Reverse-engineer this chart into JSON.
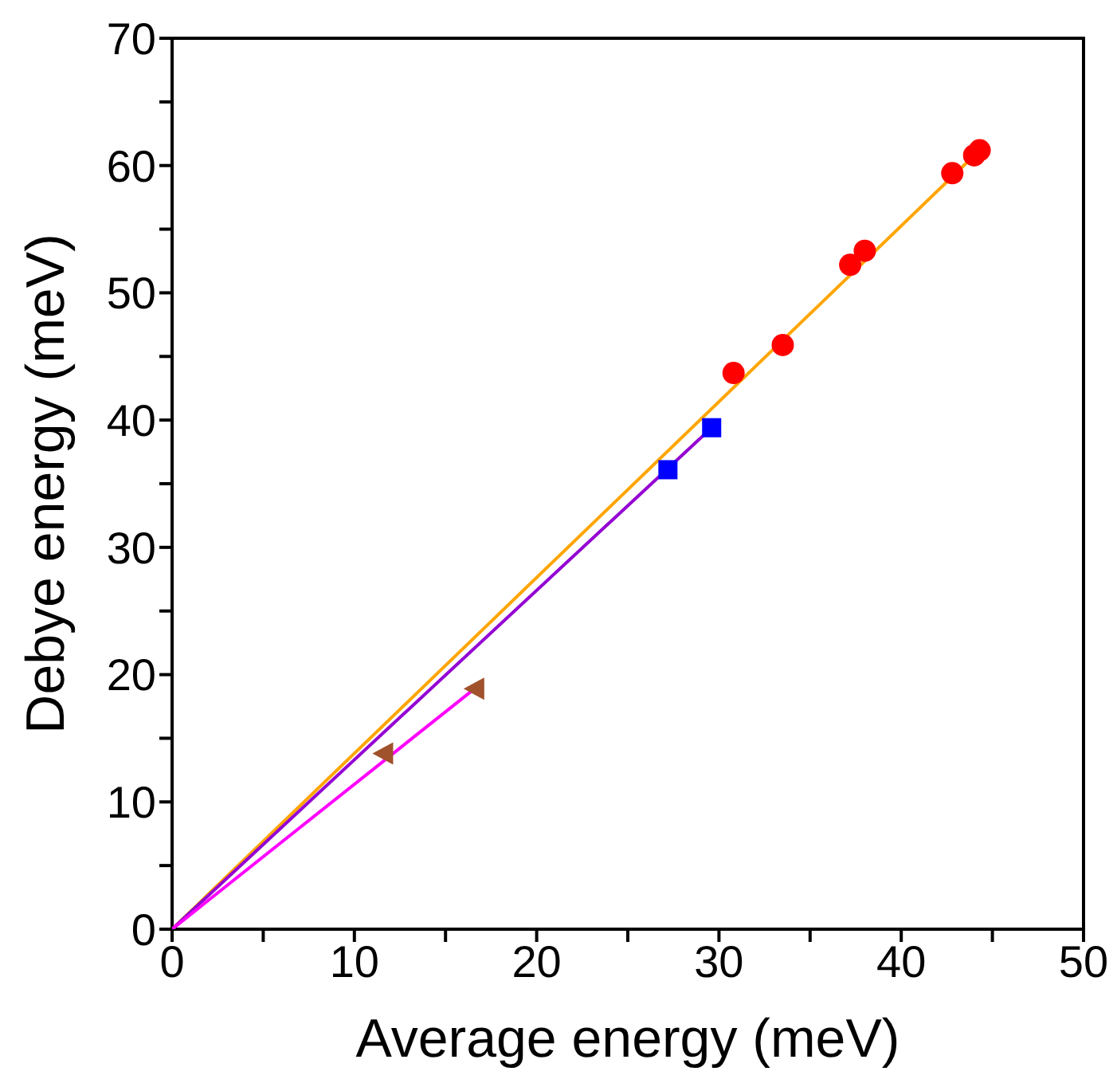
{
  "chart_data": {
    "type": "scatter",
    "xlabel": "Average energy (meV)",
    "ylabel": "Debye energy (meV)",
    "xlim": [
      0,
      50
    ],
    "xticks": [
      0,
      {
        "value": 5,
        "label": null
      },
      10,
      {
        "value": 15,
        "label": null
      },
      20,
      {
        "value": 25,
        "label": null
      },
      30,
      {
        "value": 35,
        "label": null
      },
      40,
      {
        "value": 45,
        "label": null
      },
      50
    ],
    "ylim": [
      0,
      70
    ],
    "yticks": [
      0,
      {
        "value": 5,
        "label": null
      },
      10,
      {
        "value": 15,
        "label": null
      },
      20,
      {
        "value": 25,
        "label": null
      },
      30,
      {
        "value": 35,
        "label": null
      },
      40,
      {
        "value": 45,
        "label": null
      },
      50,
      {
        "value": 55,
        "label": null
      },
      60,
      {
        "value": 65,
        "label": null
      },
      70
    ],
    "series": [
      {
        "type": "line",
        "color": "#ffa500",
        "x": [
          0,
          44.3
        ],
        "values": [
          0,
          61.2
        ],
        "marker": "none"
      },
      {
        "type": "line",
        "color": "#9400d3",
        "x": [
          0,
          29.6
        ],
        "values": [
          0,
          39.4
        ],
        "marker": "none"
      },
      {
        "type": "line",
        "color": "#ff00ff",
        "x": [
          0,
          16.6
        ],
        "values": [
          0,
          18.9
        ],
        "marker": "none"
      },
      {
        "type": "scatter",
        "color": "#ff0000",
        "x": [
          30.8,
          33.5,
          37.2,
          38.0,
          42.8,
          44.0,
          44.3
        ],
        "values": [
          43.7,
          45.9,
          52.2,
          53.3,
          59.4,
          60.8,
          61.2
        ],
        "marker": "circle"
      },
      {
        "type": "scatter",
        "color": "#0000ff",
        "x": [
          27.2,
          29.6
        ],
        "values": [
          36.1,
          39.4
        ],
        "marker": "square"
      },
      {
        "type": "scatter",
        "color": "#a0522d",
        "x": [
          11.6,
          16.6
        ],
        "values": [
          13.8,
          18.9
        ],
        "marker": "triangle"
      }
    ]
  }
}
